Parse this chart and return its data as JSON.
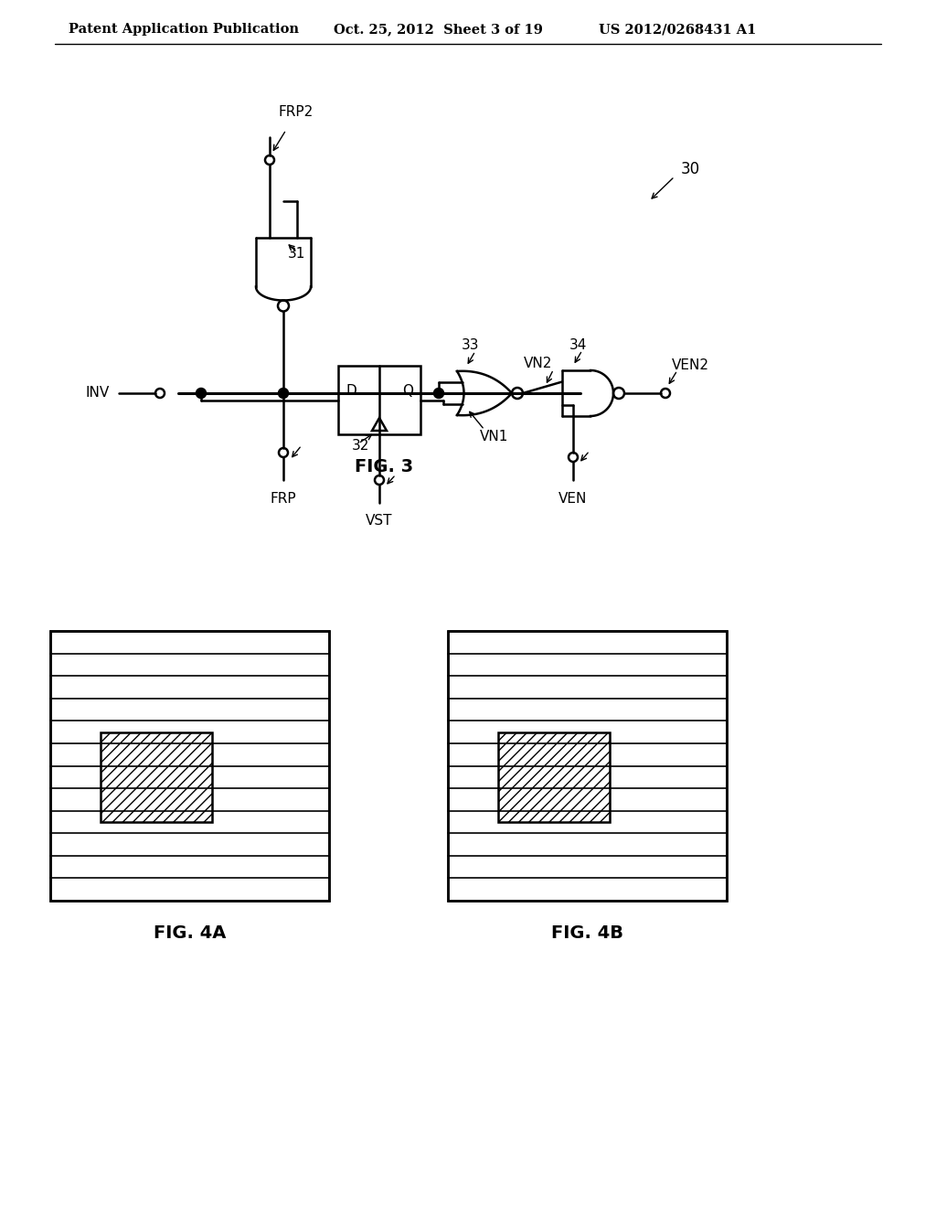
{
  "bg_color": "#ffffff",
  "line_color": "#000000",
  "header_left": "Patent Application Publication",
  "header_center": "Oct. 25, 2012  Sheet 3 of 19",
  "header_right": "US 2012/0268431 A1",
  "fig3_label": "FIG. 3",
  "fig4a_label": "FIG. 4A",
  "fig4b_label": "FIG. 4B",
  "ref30": "30",
  "ref31": "31",
  "ref32": "32",
  "ref33": "33",
  "ref34": "34",
  "label_FRP2": "FRP2",
  "label_FRP": "FRP",
  "label_VST": "VST",
  "label_INV": "INV",
  "label_VN1": "VN1",
  "label_VN2": "VN2",
  "label_VEN": "VEN",
  "label_VEN2": "VEN2",
  "label_D": "D",
  "label_Q": "Q"
}
